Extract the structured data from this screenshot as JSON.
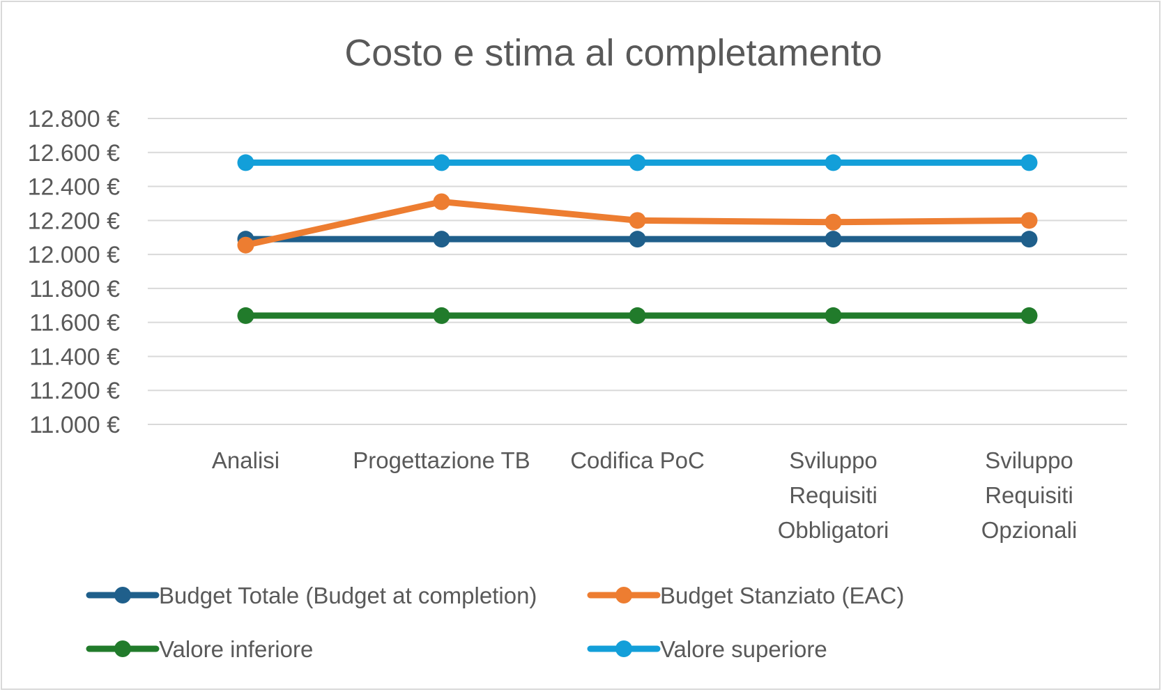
{
  "chart_data": {
    "type": "line",
    "title": "Costo e stima al completamento",
    "categories": [
      [
        "Analisi"
      ],
      [
        "Progettazione TB"
      ],
      [
        "Codifica PoC"
      ],
      [
        "Sviluppo",
        "Requisiti",
        "Obbligatori"
      ],
      [
        "Sviluppo",
        "Requisiti",
        "Opzionali"
      ]
    ],
    "y_ticks": [
      {
        "value": 11000,
        "label": "11.000 €"
      },
      {
        "value": 11200,
        "label": "11.200 €"
      },
      {
        "value": 11400,
        "label": "11.400 €"
      },
      {
        "value": 11600,
        "label": "11.600 €"
      },
      {
        "value": 11800,
        "label": "11.800 €"
      },
      {
        "value": 12000,
        "label": "12.000 €"
      },
      {
        "value": 12200,
        "label": "12.200 €"
      },
      {
        "value": 12400,
        "label": "12.400 €"
      },
      {
        "value": 12600,
        "label": "12.600 €"
      },
      {
        "value": 12800,
        "label": "12.800 €"
      }
    ],
    "ylim": [
      11000,
      12800
    ],
    "grid": true,
    "legend_position": "bottom",
    "series": [
      {
        "name": "Budget Totale (Budget at completion)",
        "color": "#1f5f8b",
        "values": [
          12090,
          12090,
          12090,
          12090,
          12090
        ]
      },
      {
        "name": "Budget Stanziato (EAC)",
        "color": "#ed7d31",
        "values": [
          12055,
          12310,
          12200,
          12190,
          12200
        ]
      },
      {
        "name": "Valore inferiore",
        "color": "#217b2b",
        "values": [
          11640,
          11640,
          11640,
          11640,
          11640
        ]
      },
      {
        "name": "Valore superiore",
        "color": "#139fd9",
        "values": [
          12540,
          12540,
          12540,
          12540,
          12540
        ]
      }
    ]
  }
}
